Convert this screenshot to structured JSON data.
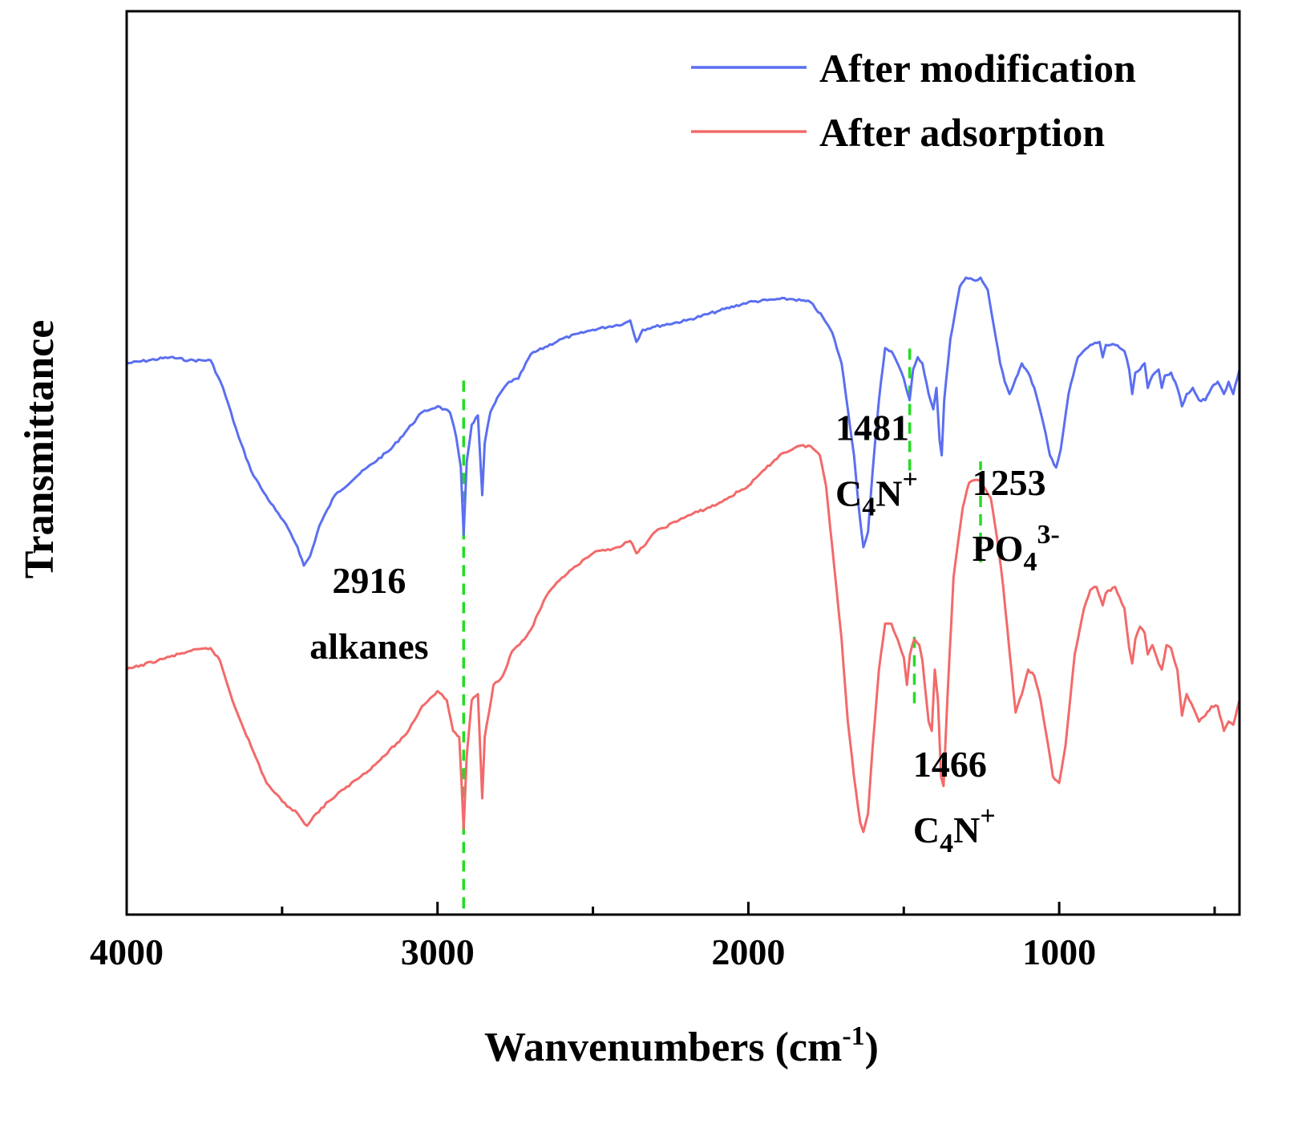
{
  "chart_data": {
    "type": "line",
    "xlabel": "Wanvenumbers (cm",
    "xlabel_sup": "-1",
    "xlabel_end": ")",
    "ylabel": "Transmittance",
    "xlim": [
      4000,
      420
    ],
    "ylim": [
      -1.8,
      1.15
    ],
    "x_ticks": [
      4000,
      3000,
      2000,
      1000
    ],
    "x_tick_labels": [
      "4000",
      "3000",
      "2000",
      "1000"
    ],
    "x_minor_ticks": [
      3500,
      2500,
      1500,
      500
    ],
    "y_ticks_visible": false,
    "legend_position": "top-right",
    "series": [
      {
        "name": "After modification",
        "color": "#5b6ff0",
        "points": [
          [
            4000,
            0.0
          ],
          [
            3860,
            0.02
          ],
          [
            3800,
            0.01
          ],
          [
            3730,
            0.01
          ],
          [
            3690,
            -0.08
          ],
          [
            3640,
            -0.24
          ],
          [
            3600,
            -0.35
          ],
          [
            3560,
            -0.42
          ],
          [
            3520,
            -0.48
          ],
          [
            3480,
            -0.54
          ],
          [
            3450,
            -0.6
          ],
          [
            3430,
            -0.66
          ],
          [
            3410,
            -0.63
          ],
          [
            3380,
            -0.53
          ],
          [
            3330,
            -0.43
          ],
          [
            3250,
            -0.36
          ],
          [
            3150,
            -0.28
          ],
          [
            3050,
            -0.16
          ],
          [
            3000,
            -0.14
          ],
          [
            2960,
            -0.16
          ],
          [
            2940,
            -0.24
          ],
          [
            2925,
            -0.34
          ],
          [
            2916,
            -0.56
          ],
          [
            2906,
            -0.32
          ],
          [
            2890,
            -0.2
          ],
          [
            2870,
            -0.17
          ],
          [
            2856,
            -0.43
          ],
          [
            2848,
            -0.26
          ],
          [
            2830,
            -0.16
          ],
          [
            2800,
            -0.1
          ],
          [
            2770,
            -0.06
          ],
          [
            2740,
            -0.05
          ],
          [
            2700,
            0.03
          ],
          [
            2600,
            0.08
          ],
          [
            2500,
            0.11
          ],
          [
            2400,
            0.13
          ],
          [
            2380,
            0.14
          ],
          [
            2360,
            0.07
          ],
          [
            2340,
            0.11
          ],
          [
            2300,
            0.12
          ],
          [
            2200,
            0.14
          ],
          [
            2100,
            0.17
          ],
          [
            2000,
            0.2
          ],
          [
            1900,
            0.21
          ],
          [
            1860,
            0.21
          ],
          [
            1800,
            0.2
          ],
          [
            1760,
            0.15
          ],
          [
            1730,
            0.1
          ],
          [
            1700,
            0.0
          ],
          [
            1680,
            -0.15
          ],
          [
            1660,
            -0.3
          ],
          [
            1645,
            -0.47
          ],
          [
            1630,
            -0.6
          ],
          [
            1615,
            -0.55
          ],
          [
            1600,
            -0.35
          ],
          [
            1580,
            -0.12
          ],
          [
            1560,
            0.05
          ],
          [
            1540,
            0.04
          ],
          [
            1520,
            0.0
          ],
          [
            1500,
            -0.05
          ],
          [
            1481,
            -0.12
          ],
          [
            1470,
            -0.02
          ],
          [
            1455,
            0.02
          ],
          [
            1440,
            0.0
          ],
          [
            1420,
            -0.1
          ],
          [
            1405,
            -0.15
          ],
          [
            1395,
            -0.08
          ],
          [
            1385,
            -0.25
          ],
          [
            1378,
            -0.3
          ],
          [
            1370,
            -0.12
          ],
          [
            1350,
            0.08
          ],
          [
            1320,
            0.25
          ],
          [
            1300,
            0.28
          ],
          [
            1270,
            0.27
          ],
          [
            1253,
            0.28
          ],
          [
            1230,
            0.24
          ],
          [
            1210,
            0.12
          ],
          [
            1190,
            0.0
          ],
          [
            1175,
            -0.06
          ],
          [
            1160,
            -0.1
          ],
          [
            1140,
            -0.05
          ],
          [
            1120,
            0.0
          ],
          [
            1100,
            -0.03
          ],
          [
            1080,
            -0.08
          ],
          [
            1050,
            -0.2
          ],
          [
            1030,
            -0.3
          ],
          [
            1010,
            -0.34
          ],
          [
            995,
            -0.28
          ],
          [
            970,
            -0.1
          ],
          [
            940,
            0.02
          ],
          [
            900,
            0.06
          ],
          [
            870,
            0.07
          ],
          [
            860,
            0.02
          ],
          [
            850,
            0.06
          ],
          [
            820,
            0.06
          ],
          [
            790,
            0.04
          ],
          [
            775,
            -0.02
          ],
          [
            765,
            -0.1
          ],
          [
            755,
            -0.03
          ],
          [
            740,
            -0.02
          ],
          [
            725,
            0.0
          ],
          [
            715,
            -0.08
          ],
          [
            700,
            -0.04
          ],
          [
            680,
            -0.02
          ],
          [
            670,
            -0.08
          ],
          [
            660,
            -0.04
          ],
          [
            640,
            -0.03
          ],
          [
            620,
            -0.08
          ],
          [
            605,
            -0.14
          ],
          [
            590,
            -0.1
          ],
          [
            570,
            -0.08
          ],
          [
            550,
            -0.12
          ],
          [
            530,
            -0.12
          ],
          [
            510,
            -0.08
          ],
          [
            490,
            -0.06
          ],
          [
            470,
            -0.1
          ],
          [
            455,
            -0.06
          ],
          [
            440,
            -0.1
          ],
          [
            420,
            -0.02
          ]
        ]
      },
      {
        "name": "After adsorption",
        "color": "#f26a6a",
        "points": [
          [
            4000,
            -1.0
          ],
          [
            3900,
            -0.97
          ],
          [
            3800,
            -0.94
          ],
          [
            3730,
            -0.93
          ],
          [
            3700,
            -0.97
          ],
          [
            3660,
            -1.1
          ],
          [
            3600,
            -1.25
          ],
          [
            3550,
            -1.37
          ],
          [
            3500,
            -1.43
          ],
          [
            3450,
            -1.47
          ],
          [
            3420,
            -1.51
          ],
          [
            3390,
            -1.47
          ],
          [
            3350,
            -1.43
          ],
          [
            3300,
            -1.39
          ],
          [
            3200,
            -1.31
          ],
          [
            3100,
            -1.21
          ],
          [
            3050,
            -1.12
          ],
          [
            3000,
            -1.07
          ],
          [
            2970,
            -1.1
          ],
          [
            2950,
            -1.2
          ],
          [
            2930,
            -1.22
          ],
          [
            2916,
            -1.52
          ],
          [
            2906,
            -1.28
          ],
          [
            2890,
            -1.1
          ],
          [
            2870,
            -1.08
          ],
          [
            2856,
            -1.42
          ],
          [
            2848,
            -1.22
          ],
          [
            2820,
            -1.05
          ],
          [
            2790,
            -1.02
          ],
          [
            2760,
            -0.94
          ],
          [
            2720,
            -0.9
          ],
          [
            2700,
            -0.87
          ],
          [
            2650,
            -0.76
          ],
          [
            2600,
            -0.7
          ],
          [
            2550,
            -0.66
          ],
          [
            2500,
            -0.62
          ],
          [
            2420,
            -0.6
          ],
          [
            2380,
            -0.58
          ],
          [
            2360,
            -0.62
          ],
          [
            2340,
            -0.6
          ],
          [
            2300,
            -0.55
          ],
          [
            2200,
            -0.5
          ],
          [
            2100,
            -0.46
          ],
          [
            2000,
            -0.4
          ],
          [
            1900,
            -0.3
          ],
          [
            1840,
            -0.27
          ],
          [
            1800,
            -0.27
          ],
          [
            1770,
            -0.3
          ],
          [
            1750,
            -0.4
          ],
          [
            1730,
            -0.6
          ],
          [
            1700,
            -0.9
          ],
          [
            1680,
            -1.17
          ],
          [
            1660,
            -1.35
          ],
          [
            1640,
            -1.5
          ],
          [
            1630,
            -1.53
          ],
          [
            1615,
            -1.47
          ],
          [
            1600,
            -1.25
          ],
          [
            1580,
            -1.0
          ],
          [
            1560,
            -0.85
          ],
          [
            1540,
            -0.85
          ],
          [
            1520,
            -0.9
          ],
          [
            1500,
            -0.96
          ],
          [
            1490,
            -1.05
          ],
          [
            1480,
            -0.95
          ],
          [
            1466,
            -0.9
          ],
          [
            1450,
            -0.92
          ],
          [
            1440,
            -0.97
          ],
          [
            1420,
            -1.17
          ],
          [
            1410,
            -1.2
          ],
          [
            1400,
            -1.0
          ],
          [
            1390,
            -1.1
          ],
          [
            1380,
            -1.35
          ],
          [
            1372,
            -1.38
          ],
          [
            1360,
            -1.1
          ],
          [
            1340,
            -0.7
          ],
          [
            1310,
            -0.47
          ],
          [
            1290,
            -0.39
          ],
          [
            1266,
            -0.38
          ],
          [
            1253,
            -0.38
          ],
          [
            1220,
            -0.44
          ],
          [
            1200,
            -0.57
          ],
          [
            1180,
            -0.73
          ],
          [
            1160,
            -0.94
          ],
          [
            1140,
            -1.14
          ],
          [
            1120,
            -1.08
          ],
          [
            1100,
            -1.0
          ],
          [
            1080,
            -1.02
          ],
          [
            1060,
            -1.1
          ],
          [
            1040,
            -1.22
          ],
          [
            1020,
            -1.35
          ],
          [
            1000,
            -1.37
          ],
          [
            980,
            -1.25
          ],
          [
            950,
            -0.95
          ],
          [
            920,
            -0.8
          ],
          [
            900,
            -0.74
          ],
          [
            880,
            -0.73
          ],
          [
            860,
            -0.79
          ],
          [
            850,
            -0.75
          ],
          [
            820,
            -0.73
          ],
          [
            790,
            -0.8
          ],
          [
            775,
            -0.93
          ],
          [
            765,
            -0.98
          ],
          [
            755,
            -0.9
          ],
          [
            740,
            -0.86
          ],
          [
            725,
            -0.88
          ],
          [
            715,
            -0.95
          ],
          [
            700,
            -0.92
          ],
          [
            680,
            -0.98
          ],
          [
            670,
            -1.0
          ],
          [
            655,
            -0.92
          ],
          [
            640,
            -0.93
          ],
          [
            620,
            -1.0
          ],
          [
            605,
            -1.15
          ],
          [
            590,
            -1.08
          ],
          [
            575,
            -1.11
          ],
          [
            550,
            -1.17
          ],
          [
            530,
            -1.15
          ],
          [
            510,
            -1.12
          ],
          [
            490,
            -1.12
          ],
          [
            470,
            -1.2
          ],
          [
            455,
            -1.17
          ],
          [
            440,
            -1.18
          ],
          [
            420,
            -1.1
          ]
        ]
      }
    ],
    "reference_lines": [
      {
        "x": 2916,
        "y_from": -1.78,
        "y_to": -0.04,
        "color": "#22dd22"
      },
      {
        "x": 1481,
        "y_from": -0.35,
        "y_to": 0.06,
        "color": "#22dd22"
      },
      {
        "x": 1466,
        "y_from": -1.11,
        "y_to": -0.89,
        "color": "#22dd22"
      },
      {
        "x": 1253,
        "y_from": -0.65,
        "y_to": -0.32,
        "color": "#22dd22"
      }
    ],
    "annotations": [
      {
        "label": "2916",
        "sub": "alkanes",
        "x": 3220,
        "y": -0.75,
        "anchor": "middle"
      },
      {
        "label": "1481",
        "sub": "C",
        "sub2": "4",
        "sub3": "N",
        "sup": "+",
        "x": 1720,
        "y": -0.25,
        "anchor": "start"
      },
      {
        "label": "1253",
        "sub": "PO",
        "sub2": "4",
        "sup": "3-",
        "x": 1280,
        "y": -0.43,
        "anchor": "start"
      },
      {
        "label": "1466",
        "sub": "C",
        "sub2": "4",
        "sub3": "N",
        "sup": "+",
        "x": 1470,
        "y": -1.35,
        "anchor": "start"
      }
    ]
  }
}
